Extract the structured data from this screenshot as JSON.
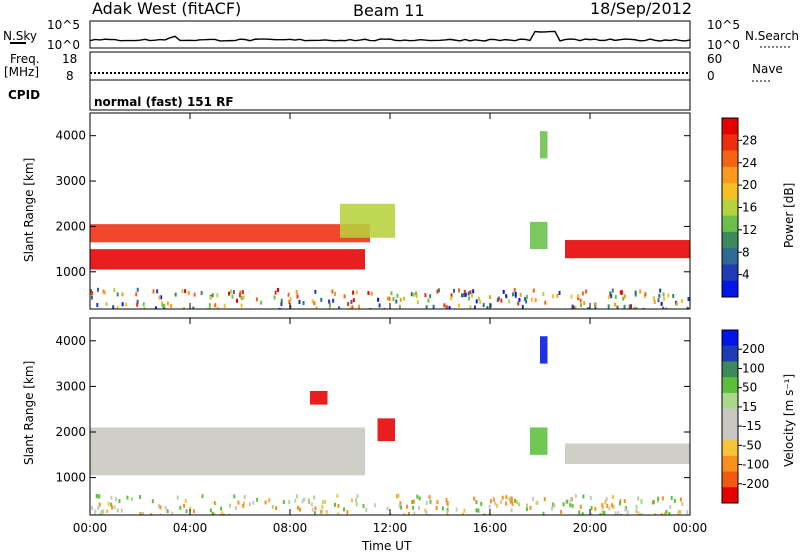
{
  "header": {
    "station": "Adak West (fitACF)",
    "beam": "Beam 11",
    "date": "18/Sep/2012"
  },
  "strip_labels": {
    "nsky": "N.Sky",
    "nsky_ticks": [
      "10^5",
      "10^0"
    ],
    "nsearch": "N.Search",
    "nsearch_ticks": [
      "10^5",
      "10^0"
    ],
    "freq": "Freq.",
    "freq_unit": "[MHz]",
    "freq_ticks": [
      "18",
      "8"
    ],
    "nave": "Nave",
    "nave_ticks": [
      "60",
      "0"
    ],
    "cpid": "CPID",
    "cpid_value": "normal (fast) 151 RF"
  },
  "x_axis": {
    "label": "Time UT",
    "ticks": [
      "00:00",
      "04:00",
      "08:00",
      "12:00",
      "16:00",
      "20:00",
      "00:00"
    ]
  },
  "colors": {
    "power_bar": [
      "#0015e6",
      "#1f3cb4",
      "#2f6a94",
      "#3c8a5b",
      "#6bbf4a",
      "#b6d23e",
      "#f6c024",
      "#f79a1e",
      "#f46316",
      "#ef2e10",
      "#e60000"
    ],
    "velocity_bar": [
      "#e60000",
      "#f15a12",
      "#f7911c",
      "#f6c43a",
      "#c8c8c0",
      "#c8c8c0",
      "#a9d88a",
      "#5cbf3b",
      "#3c8a5b",
      "#1f3cb4",
      "#0015e6"
    ],
    "strip_line": "#000000"
  },
  "chart_data": [
    {
      "type": "heatmap",
      "title": "",
      "xlabel": "",
      "ylabel": "Slant Range [km]",
      "x": [
        "00:00",
        "04:00",
        "08:00",
        "12:00",
        "16:00",
        "20:00",
        "00:00"
      ],
      "yticks": [
        1000,
        2000,
        3000,
        4000
      ],
      "ylim": [
        180,
        4500
      ],
      "colorbar": {
        "label": "Power [dB]",
        "ticks": [
          4,
          8,
          12,
          16,
          20,
          24,
          28
        ]
      },
      "regions": [
        {
          "t0": 0,
          "t1": 11.2,
          "r0": 1650,
          "r1": 2050,
          "value": 26
        },
        {
          "t0": 0,
          "t1": 11,
          "r0": 1050,
          "r1": 1500,
          "value": 28
        },
        {
          "t0": 10,
          "t1": 12.2,
          "r0": 1750,
          "r1": 2500,
          "value": 14
        },
        {
          "t0": 17.6,
          "t1": 18.3,
          "r0": 1500,
          "r1": 2100,
          "value": 10
        },
        {
          "t0": 18,
          "t1": 18.3,
          "r0": 3500,
          "r1": 4100,
          "value": 10
        },
        {
          "t0": 19,
          "t1": 24,
          "r0": 1300,
          "r1": 1700,
          "value": 28
        }
      ]
    },
    {
      "type": "heatmap",
      "title": "",
      "xlabel": "Time UT",
      "ylabel": "Slant Range [km]",
      "x": [
        "00:00",
        "04:00",
        "08:00",
        "12:00",
        "16:00",
        "20:00",
        "00:00"
      ],
      "yticks": [
        1000,
        2000,
        3000,
        4000
      ],
      "ylim": [
        180,
        4500
      ],
      "colorbar": {
        "label": "Velocity [m s⁻¹]",
        "ticks": [
          200,
          100,
          50,
          15,
          -15,
          -50,
          -100,
          -200
        ]
      },
      "regions": [
        {
          "t0": 0,
          "t1": 11,
          "r0": 1050,
          "r1": 2100,
          "value": 0
        },
        {
          "t0": 11.5,
          "t1": 12.2,
          "r0": 1800,
          "r1": 2300,
          "value": -200
        },
        {
          "t0": 8.8,
          "t1": 9.5,
          "r0": 2600,
          "r1": 2900,
          "value": -200
        },
        {
          "t0": 17.6,
          "t1": 18.3,
          "r0": 1500,
          "r1": 2100,
          "value": 50
        },
        {
          "t0": 18,
          "t1": 18.3,
          "r0": 3500,
          "r1": 4100,
          "value": 200
        },
        {
          "t0": 19,
          "t1": 24,
          "r0": 1300,
          "r1": 1750,
          "value": 0
        }
      ]
    }
  ]
}
